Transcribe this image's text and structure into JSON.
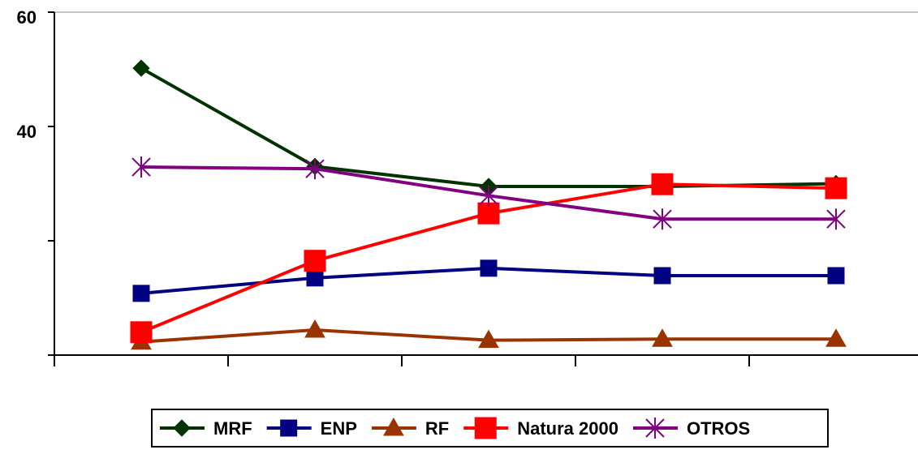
{
  "chart_data": {
    "type": "line",
    "categories": [
      null,
      null,
      null,
      null,
      null
    ],
    "ylim": [
      0,
      60
    ],
    "yticks": [
      40,
      60
    ],
    "ytick_marks": [
      0,
      20,
      40,
      60
    ],
    "legend": "bottom",
    "series": [
      {
        "name": "MRF",
        "color": "#003300",
        "marker": "diamond",
        "values": [
          50.2,
          33.0,
          29.5,
          29.5,
          30.0
        ]
      },
      {
        "name": "ENP",
        "color": "#000080",
        "marker": "square",
        "values": [
          10.8,
          13.5,
          15.2,
          13.9,
          13.9
        ]
      },
      {
        "name": "RF",
        "color": "#993300",
        "marker": "triangle",
        "values": [
          2.3,
          4.4,
          2.6,
          2.8,
          2.8
        ]
      },
      {
        "name": "Natura 2000",
        "color": "#ff0000",
        "marker": "bigsquare",
        "values": [
          4.0,
          16.5,
          24.8,
          29.9,
          29.2
        ]
      },
      {
        "name": "OTROS",
        "color": "#800080",
        "marker": "star",
        "values": [
          32.9,
          32.6,
          27.9,
          23.8,
          23.8
        ]
      }
    ]
  }
}
